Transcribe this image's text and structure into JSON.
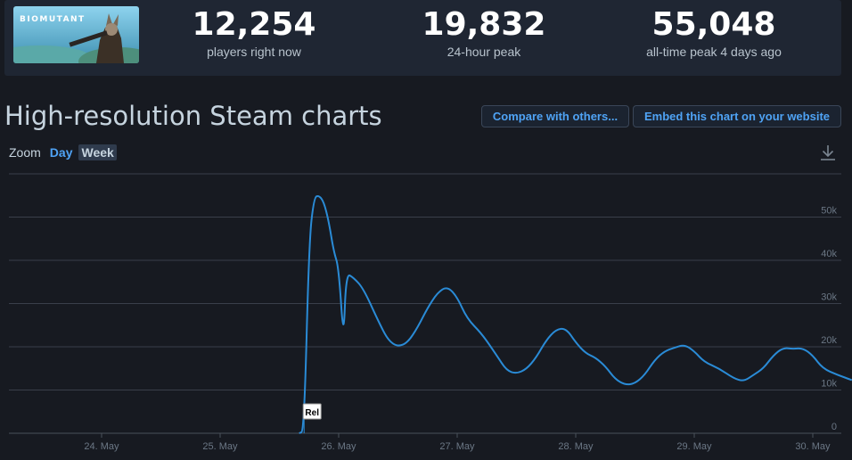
{
  "game": {
    "banner_text": "BIOMUTANT"
  },
  "stats": [
    {
      "value": "12,254",
      "label": "players right now"
    },
    {
      "value": "19,832",
      "label": "24-hour peak"
    },
    {
      "value": "55,048",
      "label": "all-time peak 4 days ago"
    }
  ],
  "page": {
    "title": "High-resolution Steam charts"
  },
  "buttons": {
    "compare": "Compare with others...",
    "embed": "Embed this chart on your website"
  },
  "zoom": {
    "label": "Zoom",
    "day": "Day",
    "week": "Week",
    "active": "Week"
  },
  "icons": {
    "download": "download-icon"
  },
  "colors": {
    "line": "#2a8bd6",
    "background": "#171a21",
    "grid": "#3a3f4a",
    "accent": "#4fa3f5"
  },
  "chart_data": {
    "type": "line",
    "x_ticks": [
      "24. May",
      "25. May",
      "26. May",
      "27. May",
      "28. May",
      "29. May",
      "30. May"
    ],
    "y_ticks": [
      "0",
      "10k",
      "20k",
      "30k",
      "40k",
      "50k"
    ],
    "ylim": [
      0,
      60000
    ],
    "grid": true,
    "annotations": [
      {
        "text": "Rel",
        "x": "2021-05-25T17:00"
      }
    ],
    "series": [
      {
        "name": "",
        "points": [
          [
            "2021-05-25T16:00",
            0
          ],
          [
            "2021-05-25T17:00",
            500
          ],
          [
            "2021-05-25T18:00",
            44000
          ],
          [
            "2021-05-25T19:00",
            54500
          ],
          [
            "2021-05-25T20:00",
            55048
          ],
          [
            "2021-05-25T21:00",
            53500
          ],
          [
            "2021-05-25T22:00",
            49000
          ],
          [
            "2021-05-25T23:00",
            42000
          ],
          [
            "2021-05-26T00:00",
            38500
          ],
          [
            "2021-05-26T01:00",
            21000
          ],
          [
            "2021-05-26T01:30",
            37000
          ],
          [
            "2021-05-26T03:00",
            36000
          ],
          [
            "2021-05-26T05:00",
            33500
          ],
          [
            "2021-05-26T08:00",
            26000
          ],
          [
            "2021-05-26T10:00",
            21500
          ],
          [
            "2021-05-26T12:00",
            20000
          ],
          [
            "2021-05-26T14:00",
            21000
          ],
          [
            "2021-05-26T16:00",
            24500
          ],
          [
            "2021-05-26T18:00",
            29000
          ],
          [
            "2021-05-26T20:00",
            32500
          ],
          [
            "2021-05-26T22:00",
            34000
          ],
          [
            "2021-05-27T00:00",
            31500
          ],
          [
            "2021-05-27T02:00",
            26500
          ],
          [
            "2021-05-27T05:00",
            23000
          ],
          [
            "2021-05-27T08:00",
            18000
          ],
          [
            "2021-05-27T10:00",
            14500
          ],
          [
            "2021-05-27T12:00",
            13800
          ],
          [
            "2021-05-27T14:00",
            14800
          ],
          [
            "2021-05-27T16:00",
            17500
          ],
          [
            "2021-05-27T18:00",
            21500
          ],
          [
            "2021-05-27T20:00",
            24000
          ],
          [
            "2021-05-27T22:00",
            24300
          ],
          [
            "2021-05-28T00:00",
            21000
          ],
          [
            "2021-05-28T02:00",
            18500
          ],
          [
            "2021-05-28T04:00",
            17500
          ],
          [
            "2021-05-28T06:00",
            15500
          ],
          [
            "2021-05-28T08:00",
            12500
          ],
          [
            "2021-05-28T10:00",
            11200
          ],
          [
            "2021-05-28T12:00",
            11500
          ],
          [
            "2021-05-28T14:00",
            13500
          ],
          [
            "2021-05-28T16:00",
            17000
          ],
          [
            "2021-05-28T18:00",
            19000
          ],
          [
            "2021-05-28T20:00",
            19800
          ],
          [
            "2021-05-28T22:00",
            20500
          ],
          [
            "2021-05-29T00:00",
            19000
          ],
          [
            "2021-05-29T02:00",
            16500
          ],
          [
            "2021-05-29T05:00",
            15000
          ],
          [
            "2021-05-29T08:00",
            12700
          ],
          [
            "2021-05-29T10:00",
            12000
          ],
          [
            "2021-05-29T12:00",
            13500
          ],
          [
            "2021-05-29T14:00",
            15000
          ],
          [
            "2021-05-29T16:00",
            18000
          ],
          [
            "2021-05-29T18:00",
            19800
          ],
          [
            "2021-05-29T20:00",
            19500
          ],
          [
            "2021-05-29T22:00",
            19700
          ],
          [
            "2021-05-30T00:00",
            18000
          ],
          [
            "2021-05-30T02:00",
            15000
          ],
          [
            "2021-05-30T05:00",
            13500
          ],
          [
            "2021-05-30T08:00",
            12254
          ]
        ]
      }
    ]
  }
}
